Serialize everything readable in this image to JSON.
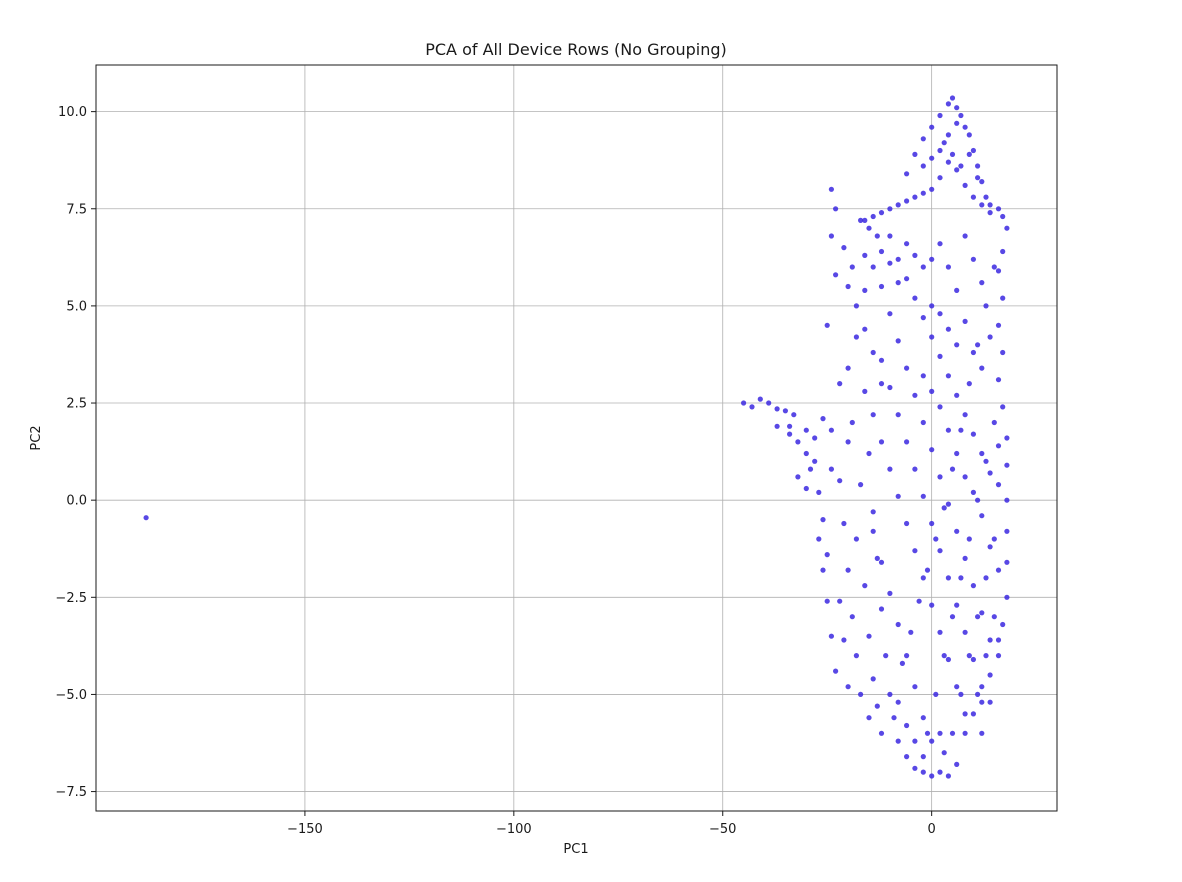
{
  "chart_data": {
    "type": "scatter",
    "title": "PCA of All Device Rows (No Grouping)",
    "xlabel": "PC1",
    "ylabel": "PC2",
    "xlim": [
      -200,
      30
    ],
    "ylim": [
      -8,
      11.2
    ],
    "xticks": [
      -150,
      -100,
      -50,
      0
    ],
    "xtick_labels": [
      "−150",
      "−100",
      "−50",
      "0"
    ],
    "yticks": [
      -7.5,
      -5.0,
      -2.5,
      0.0,
      2.5,
      5.0,
      7.5,
      10.0
    ],
    "ytick_labels": [
      "−7.5",
      "−5.0",
      "−2.5",
      "0.0",
      "2.5",
      "5.0",
      "7.5",
      "10.0"
    ],
    "grid": true,
    "point_color": "#3b28e0",
    "series": [
      {
        "points": [
          [
            -188,
            -0.45
          ],
          [
            -45,
            2.5
          ],
          [
            -43,
            2.4
          ],
          [
            -41,
            2.6
          ],
          [
            -39,
            2.5
          ],
          [
            -37,
            2.35
          ],
          [
            -35,
            2.3
          ],
          [
            -33,
            2.2
          ],
          [
            -37,
            1.9
          ],
          [
            -34,
            1.7
          ],
          [
            -32,
            1.5
          ],
          [
            -30,
            1.2
          ],
          [
            -28,
            1.0
          ],
          [
            -32,
            0.6
          ],
          [
            -30,
            0.3
          ],
          [
            -29,
            0.8
          ],
          [
            -27,
            0.2
          ],
          [
            -26,
            -0.5
          ],
          [
            -27,
            -1.0
          ],
          [
            -26,
            -1.8
          ],
          [
            -25,
            -2.6
          ],
          [
            -24,
            -3.5
          ],
          [
            -23,
            -4.4
          ],
          [
            -24,
            1.8
          ],
          [
            -22,
            3.0
          ],
          [
            -25,
            4.5
          ],
          [
            -23,
            5.8
          ],
          [
            -24,
            6.8
          ],
          [
            -23,
            7.5
          ],
          [
            -24,
            8.0
          ],
          [
            -21,
            6.5
          ],
          [
            -19,
            6.0
          ],
          [
            -16,
            5.4
          ],
          [
            -18,
            4.2
          ],
          [
            -20,
            3.4
          ],
          [
            -16,
            2.8
          ],
          [
            -19,
            2.0
          ],
          [
            -15,
            1.2
          ],
          [
            -17,
            0.4
          ],
          [
            -14,
            -0.3
          ],
          [
            -18,
            -1.0
          ],
          [
            -13,
            -1.5
          ],
          [
            -16,
            -2.2
          ],
          [
            -12,
            -2.8
          ],
          [
            -15,
            -3.5
          ],
          [
            -11,
            -4.0
          ],
          [
            -14,
            -4.6
          ],
          [
            -10,
            -5.0
          ],
          [
            -13,
            -5.3
          ],
          [
            -9,
            -5.6
          ],
          [
            -12,
            -6.0
          ],
          [
            -8,
            -6.2
          ],
          [
            -6,
            -6.6
          ],
          [
            -4,
            -6.9
          ],
          [
            -2,
            -7.0
          ],
          [
            0,
            -7.1
          ],
          [
            2,
            -7.0
          ],
          [
            4,
            -7.1
          ],
          [
            6,
            -6.8
          ],
          [
            8,
            -6.0
          ],
          [
            10,
            -5.5
          ],
          [
            12,
            -5.2
          ],
          [
            14,
            -4.5
          ],
          [
            16,
            -4.0
          ],
          [
            17,
            -3.2
          ],
          [
            18,
            -2.5
          ],
          [
            18,
            -1.6
          ],
          [
            18,
            -0.8
          ],
          [
            18,
            0.0
          ],
          [
            18,
            0.9
          ],
          [
            18,
            1.6
          ],
          [
            17,
            2.4
          ],
          [
            16,
            3.1
          ],
          [
            17,
            3.8
          ],
          [
            16,
            4.5
          ],
          [
            17,
            5.2
          ],
          [
            16,
            5.9
          ],
          [
            17,
            6.4
          ],
          [
            18,
            7.0
          ],
          [
            17,
            7.3
          ],
          [
            16,
            7.5
          ],
          [
            14,
            7.4
          ],
          [
            12,
            7.6
          ],
          [
            10,
            7.8
          ],
          [
            8,
            8.1
          ],
          [
            6,
            8.5
          ],
          [
            4,
            8.7
          ],
          [
            2,
            8.3
          ],
          [
            0,
            8.0
          ],
          [
            -2,
            7.9
          ],
          [
            -4,
            7.8
          ],
          [
            -6,
            7.7
          ],
          [
            -8,
            7.6
          ],
          [
            -10,
            7.5
          ],
          [
            -12,
            7.4
          ],
          [
            -14,
            7.3
          ],
          [
            -16,
            7.2
          ],
          [
            -6,
            8.4
          ],
          [
            -4,
            8.9
          ],
          [
            -2,
            9.3
          ],
          [
            0,
            9.6
          ],
          [
            2,
            9.9
          ],
          [
            4,
            10.2
          ],
          [
            5,
            10.35
          ],
          [
            6,
            10.1
          ],
          [
            7,
            9.9
          ],
          [
            8,
            9.6
          ],
          [
            9,
            9.4
          ],
          [
            10,
            9.0
          ],
          [
            11,
            8.6
          ],
          [
            12,
            8.2
          ],
          [
            13,
            7.8
          ],
          [
            14,
            7.6
          ],
          [
            6,
            9.7
          ],
          [
            4,
            9.4
          ],
          [
            2,
            9.0
          ],
          [
            0,
            8.8
          ],
          [
            -2,
            8.6
          ],
          [
            3,
            9.2
          ],
          [
            5,
            8.9
          ],
          [
            7,
            8.6
          ],
          [
            9,
            8.9
          ],
          [
            11,
            8.3
          ],
          [
            -10,
            6.8
          ],
          [
            -8,
            6.2
          ],
          [
            -6,
            5.7
          ],
          [
            -4,
            5.2
          ],
          [
            -2,
            4.7
          ],
          [
            0,
            4.2
          ],
          [
            2,
            3.7
          ],
          [
            4,
            3.2
          ],
          [
            6,
            2.7
          ],
          [
            8,
            2.2
          ],
          [
            10,
            1.7
          ],
          [
            12,
            1.2
          ],
          [
            14,
            0.7
          ],
          [
            -12,
            5.5
          ],
          [
            -10,
            4.8
          ],
          [
            -8,
            4.1
          ],
          [
            -6,
            3.4
          ],
          [
            -4,
            2.7
          ],
          [
            -2,
            2.0
          ],
          [
            0,
            1.3
          ],
          [
            2,
            0.6
          ],
          [
            4,
            -0.1
          ],
          [
            6,
            -0.8
          ],
          [
            8,
            -1.5
          ],
          [
            10,
            -2.2
          ],
          [
            12,
            -2.9
          ],
          [
            14,
            -3.6
          ],
          [
            -12,
            3.6
          ],
          [
            -10,
            2.9
          ],
          [
            -8,
            2.2
          ],
          [
            -6,
            1.5
          ],
          [
            -4,
            0.8
          ],
          [
            -2,
            0.1
          ],
          [
            0,
            -0.6
          ],
          [
            2,
            -1.3
          ],
          [
            4,
            -2.0
          ],
          [
            6,
            -2.7
          ],
          [
            8,
            -3.4
          ],
          [
            10,
            -4.1
          ],
          [
            12,
            -4.8
          ],
          [
            -14,
            2.2
          ],
          [
            -12,
            1.5
          ],
          [
            -10,
            0.8
          ],
          [
            -8,
            0.1
          ],
          [
            -6,
            -0.6
          ],
          [
            -4,
            -1.3
          ],
          [
            -2,
            -2.0
          ],
          [
            0,
            -2.7
          ],
          [
            2,
            -3.4
          ],
          [
            4,
            -4.1
          ],
          [
            6,
            -4.8
          ],
          [
            8,
            -5.5
          ],
          [
            -14,
            -0.8
          ],
          [
            -12,
            -1.6
          ],
          [
            -10,
            -2.4
          ],
          [
            -8,
            -3.2
          ],
          [
            -6,
            -4.0
          ],
          [
            -4,
            -4.8
          ],
          [
            -2,
            -5.6
          ],
          [
            0,
            -6.2
          ],
          [
            2,
            -6.0
          ],
          [
            -8,
            -5.2
          ],
          [
            -6,
            -5.8
          ],
          [
            -4,
            -6.2
          ],
          [
            -2,
            -6.6
          ],
          [
            15,
            6.0
          ],
          [
            13,
            5.0
          ],
          [
            11,
            4.0
          ],
          [
            9,
            3.0
          ],
          [
            7,
            1.8
          ],
          [
            5,
            0.8
          ],
          [
            3,
            -0.2
          ],
          [
            1,
            -1.0
          ],
          [
            -1,
            -1.8
          ],
          [
            -3,
            -2.6
          ],
          [
            -5,
            -3.4
          ],
          [
            -7,
            -4.2
          ],
          [
            15,
            2.0
          ],
          [
            13,
            1.0
          ],
          [
            11,
            0.0
          ],
          [
            9,
            -1.0
          ],
          [
            7,
            -2.0
          ],
          [
            5,
            -3.0
          ],
          [
            3,
            -4.0
          ],
          [
            1,
            -5.0
          ],
          [
            -1,
            -6.0
          ],
          [
            15,
            -1.0
          ],
          [
            13,
            -2.0
          ],
          [
            11,
            -3.0
          ],
          [
            9,
            -4.0
          ],
          [
            7,
            -5.0
          ],
          [
            5,
            -6.0
          ],
          [
            3,
            -6.5
          ],
          [
            15,
            -3.0
          ],
          [
            13,
            -4.0
          ],
          [
            11,
            -5.0
          ],
          [
            -20,
            5.5
          ],
          [
            -18,
            5.0
          ],
          [
            -16,
            4.4
          ],
          [
            -14,
            3.8
          ],
          [
            -12,
            3.0
          ],
          [
            -20,
            1.5
          ],
          [
            -22,
            0.5
          ],
          [
            -21,
            -0.6
          ],
          [
            -20,
            -1.8
          ],
          [
            -19,
            -3.0
          ],
          [
            -18,
            -4.0
          ],
          [
            -17,
            -5.0
          ],
          [
            -15,
            -5.6
          ],
          [
            -16,
            6.3
          ],
          [
            -14,
            6.0
          ],
          [
            -12,
            6.4
          ],
          [
            -10,
            6.1
          ],
          [
            -8,
            5.6
          ],
          [
            -6,
            6.6
          ],
          [
            -4,
            6.3
          ],
          [
            -2,
            6.0
          ],
          [
            0,
            6.2
          ],
          [
            2,
            6.6
          ],
          [
            4,
            6.0
          ],
          [
            6,
            5.4
          ],
          [
            8,
            6.8
          ],
          [
            10,
            6.2
          ],
          [
            12,
            5.6
          ],
          [
            0,
            5.0
          ],
          [
            2,
            4.8
          ],
          [
            4,
            4.4
          ],
          [
            6,
            4.0
          ],
          [
            8,
            4.6
          ],
          [
            10,
            3.8
          ],
          [
            12,
            3.4
          ],
          [
            14,
            4.2
          ],
          [
            -2,
            3.2
          ],
          [
            0,
            2.8
          ],
          [
            2,
            2.4
          ],
          [
            4,
            1.8
          ],
          [
            6,
            1.2
          ],
          [
            8,
            0.6
          ],
          [
            10,
            0.2
          ],
          [
            12,
            -0.4
          ],
          [
            14,
            -1.2
          ],
          [
            16,
            -1.8
          ],
          [
            16,
            0.4
          ],
          [
            16,
            1.4
          ],
          [
            16,
            -3.6
          ],
          [
            14,
            -5.2
          ],
          [
            12,
            -6.0
          ],
          [
            -28,
            1.6
          ],
          [
            -30,
            1.8
          ],
          [
            -34,
            1.9
          ],
          [
            -26,
            2.1
          ],
          [
            -24,
            0.8
          ],
          [
            -25,
            -1.4
          ],
          [
            -22,
            -2.6
          ],
          [
            -21,
            -3.6
          ],
          [
            -20,
            -4.8
          ],
          [
            -17,
            7.2
          ],
          [
            -15,
            7.0
          ],
          [
            -13,
            6.8
          ]
        ]
      }
    ]
  }
}
